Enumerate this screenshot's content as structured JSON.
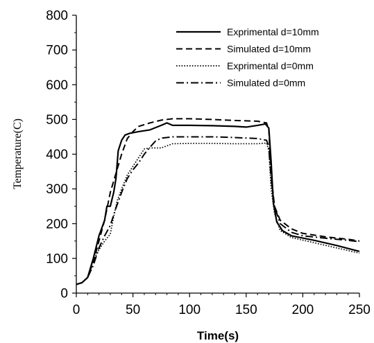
{
  "chart_data": {
    "type": "line",
    "xlabel": "Time(s)",
    "ylabel": "Temperature(C)",
    "xlim": [
      0,
      250
    ],
    "ylim": [
      0,
      800
    ],
    "xticks": [
      0,
      50,
      100,
      150,
      200,
      250
    ],
    "yticks": [
      0,
      100,
      200,
      300,
      400,
      500,
      600,
      700,
      800
    ],
    "x_minor_step": 10,
    "y_minor_step": 50,
    "grid": false,
    "legend_position": "top-right",
    "series": [
      {
        "name": "Exprimental d=10mm",
        "dash": "solid",
        "points": [
          [
            0,
            25
          ],
          [
            5,
            30
          ],
          [
            10,
            45
          ],
          [
            15,
            100
          ],
          [
            20,
            165
          ],
          [
            25,
            210
          ],
          [
            27,
            250
          ],
          [
            30,
            250
          ],
          [
            33,
            290
          ],
          [
            35,
            330
          ],
          [
            37,
            410
          ],
          [
            40,
            440
          ],
          [
            43,
            455
          ],
          [
            47,
            460
          ],
          [
            55,
            465
          ],
          [
            65,
            470
          ],
          [
            75,
            483
          ],
          [
            80,
            490
          ],
          [
            85,
            483
          ],
          [
            100,
            483
          ],
          [
            120,
            482
          ],
          [
            140,
            480
          ],
          [
            150,
            478
          ],
          [
            160,
            483
          ],
          [
            167,
            487
          ],
          [
            170,
            475
          ],
          [
            172,
            380
          ],
          [
            174,
            260
          ],
          [
            177,
            205
          ],
          [
            182,
            180
          ],
          [
            190,
            165
          ],
          [
            210,
            152
          ],
          [
            230,
            137
          ],
          [
            250,
            120
          ]
        ]
      },
      {
        "name": "Simulated d=10mm",
        "dash": "dashed",
        "points": [
          [
            0,
            25
          ],
          [
            5,
            30
          ],
          [
            10,
            45
          ],
          [
            15,
            90
          ],
          [
            20,
            150
          ],
          [
            25,
            210
          ],
          [
            30,
            290
          ],
          [
            35,
            345
          ],
          [
            40,
            400
          ],
          [
            45,
            445
          ],
          [
            50,
            465
          ],
          [
            55,
            480
          ],
          [
            65,
            490
          ],
          [
            75,
            498
          ],
          [
            85,
            502
          ],
          [
            100,
            502
          ],
          [
            120,
            500
          ],
          [
            140,
            497
          ],
          [
            160,
            495
          ],
          [
            168,
            490
          ],
          [
            170,
            470
          ],
          [
            172,
            340
          ],
          [
            175,
            250
          ],
          [
            180,
            210
          ],
          [
            190,
            185
          ],
          [
            200,
            172
          ],
          [
            220,
            162
          ],
          [
            240,
            155
          ],
          [
            250,
            150
          ]
        ]
      },
      {
        "name": "Exprimental d=0mm",
        "dash": "dotted",
        "points": [
          [
            0,
            25
          ],
          [
            5,
            30
          ],
          [
            10,
            45
          ],
          [
            15,
            95
          ],
          [
            20,
            125
          ],
          [
            25,
            150
          ],
          [
            30,
            170
          ],
          [
            33,
            220
          ],
          [
            36,
            265
          ],
          [
            40,
            300
          ],
          [
            45,
            340
          ],
          [
            50,
            365
          ],
          [
            55,
            390
          ],
          [
            60,
            415
          ],
          [
            65,
            418
          ],
          [
            75,
            418
          ],
          [
            85,
            430
          ],
          [
            100,
            431
          ],
          [
            120,
            431
          ],
          [
            140,
            430
          ],
          [
            160,
            430
          ],
          [
            168,
            432
          ],
          [
            170,
            410
          ],
          [
            172,
            300
          ],
          [
            175,
            230
          ],
          [
            180,
            180
          ],
          [
            190,
            160
          ],
          [
            210,
            145
          ],
          [
            230,
            130
          ],
          [
            250,
            115
          ]
        ]
      },
      {
        "name": "Simulated d=0mm",
        "dash": "dashdot",
        "points": [
          [
            0,
            25
          ],
          [
            5,
            30
          ],
          [
            10,
            45
          ],
          [
            15,
            80
          ],
          [
            20,
            130
          ],
          [
            25,
            165
          ],
          [
            30,
            195
          ],
          [
            35,
            245
          ],
          [
            40,
            290
          ],
          [
            45,
            330
          ],
          [
            50,
            355
          ],
          [
            55,
            375
          ],
          [
            60,
            400
          ],
          [
            65,
            420
          ],
          [
            70,
            438
          ],
          [
            75,
            446
          ],
          [
            85,
            450
          ],
          [
            100,
            450
          ],
          [
            120,
            450
          ],
          [
            140,
            448
          ],
          [
            160,
            445
          ],
          [
            168,
            440
          ],
          [
            170,
            420
          ],
          [
            172,
            330
          ],
          [
            175,
            250
          ],
          [
            180,
            200
          ],
          [
            190,
            175
          ],
          [
            200,
            165
          ],
          [
            220,
            158
          ],
          [
            240,
            152
          ],
          [
            250,
            148
          ]
        ]
      }
    ]
  }
}
